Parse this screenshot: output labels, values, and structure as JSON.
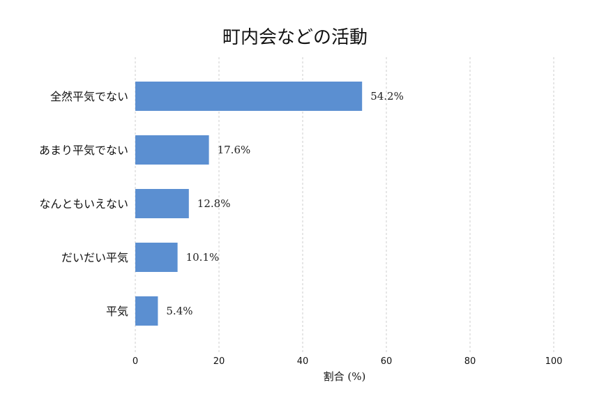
{
  "chart_data": {
    "type": "bar",
    "orientation": "horizontal",
    "title": "町内会などの活動",
    "categories": [
      "全然平気でない",
      "あまり平気でない",
      "なんともいえない",
      "だいだい平気",
      "平気"
    ],
    "values": [
      54.2,
      17.6,
      12.8,
      10.1,
      5.4
    ],
    "value_labels": [
      "54.2%",
      "17.6%",
      "12.8%",
      "10.1%",
      "5.4%"
    ],
    "xlabel": "割合 (%)",
    "ylabel": "",
    "xlim": [
      0,
      100
    ],
    "xticks": [
      0,
      20,
      40,
      60,
      80,
      100
    ],
    "grid": "x-dashed",
    "bar_color": "#5b8fd1"
  }
}
